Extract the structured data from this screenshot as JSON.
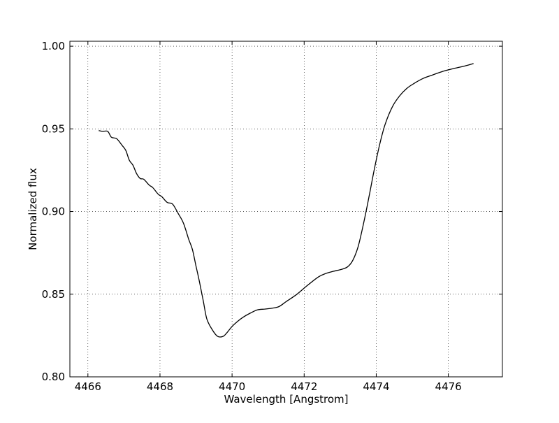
{
  "chart_data": {
    "type": "line",
    "title": "",
    "xlabel": "Wavelength [Angstrom]",
    "ylabel": "Normalized flux",
    "xlim": [
      4465.5,
      4477.5
    ],
    "ylim": [
      0.8,
      1.003
    ],
    "xticks": [
      4466,
      4468,
      4470,
      4472,
      4474,
      4476
    ],
    "xtick_labels": [
      "4466",
      "4468",
      "4470",
      "4472",
      "4474",
      "4476"
    ],
    "yticks": [
      0.8,
      0.85,
      0.9,
      0.95,
      1.0
    ],
    "ytick_labels": [
      "0.80",
      "0.85",
      "0.90",
      "0.95",
      "1.00"
    ],
    "grid": true,
    "legend": "none",
    "line_color": "#000000",
    "series": [
      {
        "x": [
          4466.3,
          4466.4,
          4466.55,
          4466.65,
          4466.8,
          4466.95,
          4467.05,
          4467.15,
          4467.25,
          4467.35,
          4467.45,
          4467.55,
          4467.7,
          4467.8,
          4467.95,
          4468.05,
          4468.2,
          4468.35,
          4468.5,
          4468.65,
          4468.8,
          4468.9,
          4469.0,
          4469.1,
          4469.2,
          4469.3,
          4469.45,
          4469.6,
          4469.75,
          4469.85,
          4470.0,
          4470.15,
          4470.3,
          4470.5,
          4470.7,
          4470.9,
          4471.1,
          4471.3,
          4471.5,
          4471.8,
          4472.1,
          4472.4,
          4472.6,
          4472.8,
          4473.0,
          4473.2,
          4473.35,
          4473.5,
          4473.65,
          4473.8,
          4473.95,
          4474.1,
          4474.25,
          4474.45,
          4474.65,
          4474.85,
          4475.05,
          4475.3,
          4475.55,
          4475.85,
          4476.15,
          4476.45,
          4476.7
        ],
        "y": [
          0.949,
          0.9485,
          0.9485,
          0.945,
          0.944,
          0.94,
          0.937,
          0.931,
          0.928,
          0.923,
          0.92,
          0.9195,
          0.916,
          0.9145,
          0.9105,
          0.909,
          0.9055,
          0.9045,
          0.899,
          0.893,
          0.883,
          0.877,
          0.867,
          0.857,
          0.846,
          0.835,
          0.8285,
          0.8245,
          0.8245,
          0.8265,
          0.8305,
          0.8335,
          0.836,
          0.8385,
          0.8405,
          0.841,
          0.8415,
          0.8425,
          0.8455,
          0.85,
          0.8555,
          0.8605,
          0.8625,
          0.8638,
          0.8648,
          0.8665,
          0.8705,
          0.879,
          0.893,
          0.909,
          0.926,
          0.941,
          0.953,
          0.9635,
          0.97,
          0.9745,
          0.9775,
          0.9805,
          0.9825,
          0.9848,
          0.9865,
          0.988,
          0.9895
        ]
      }
    ]
  }
}
